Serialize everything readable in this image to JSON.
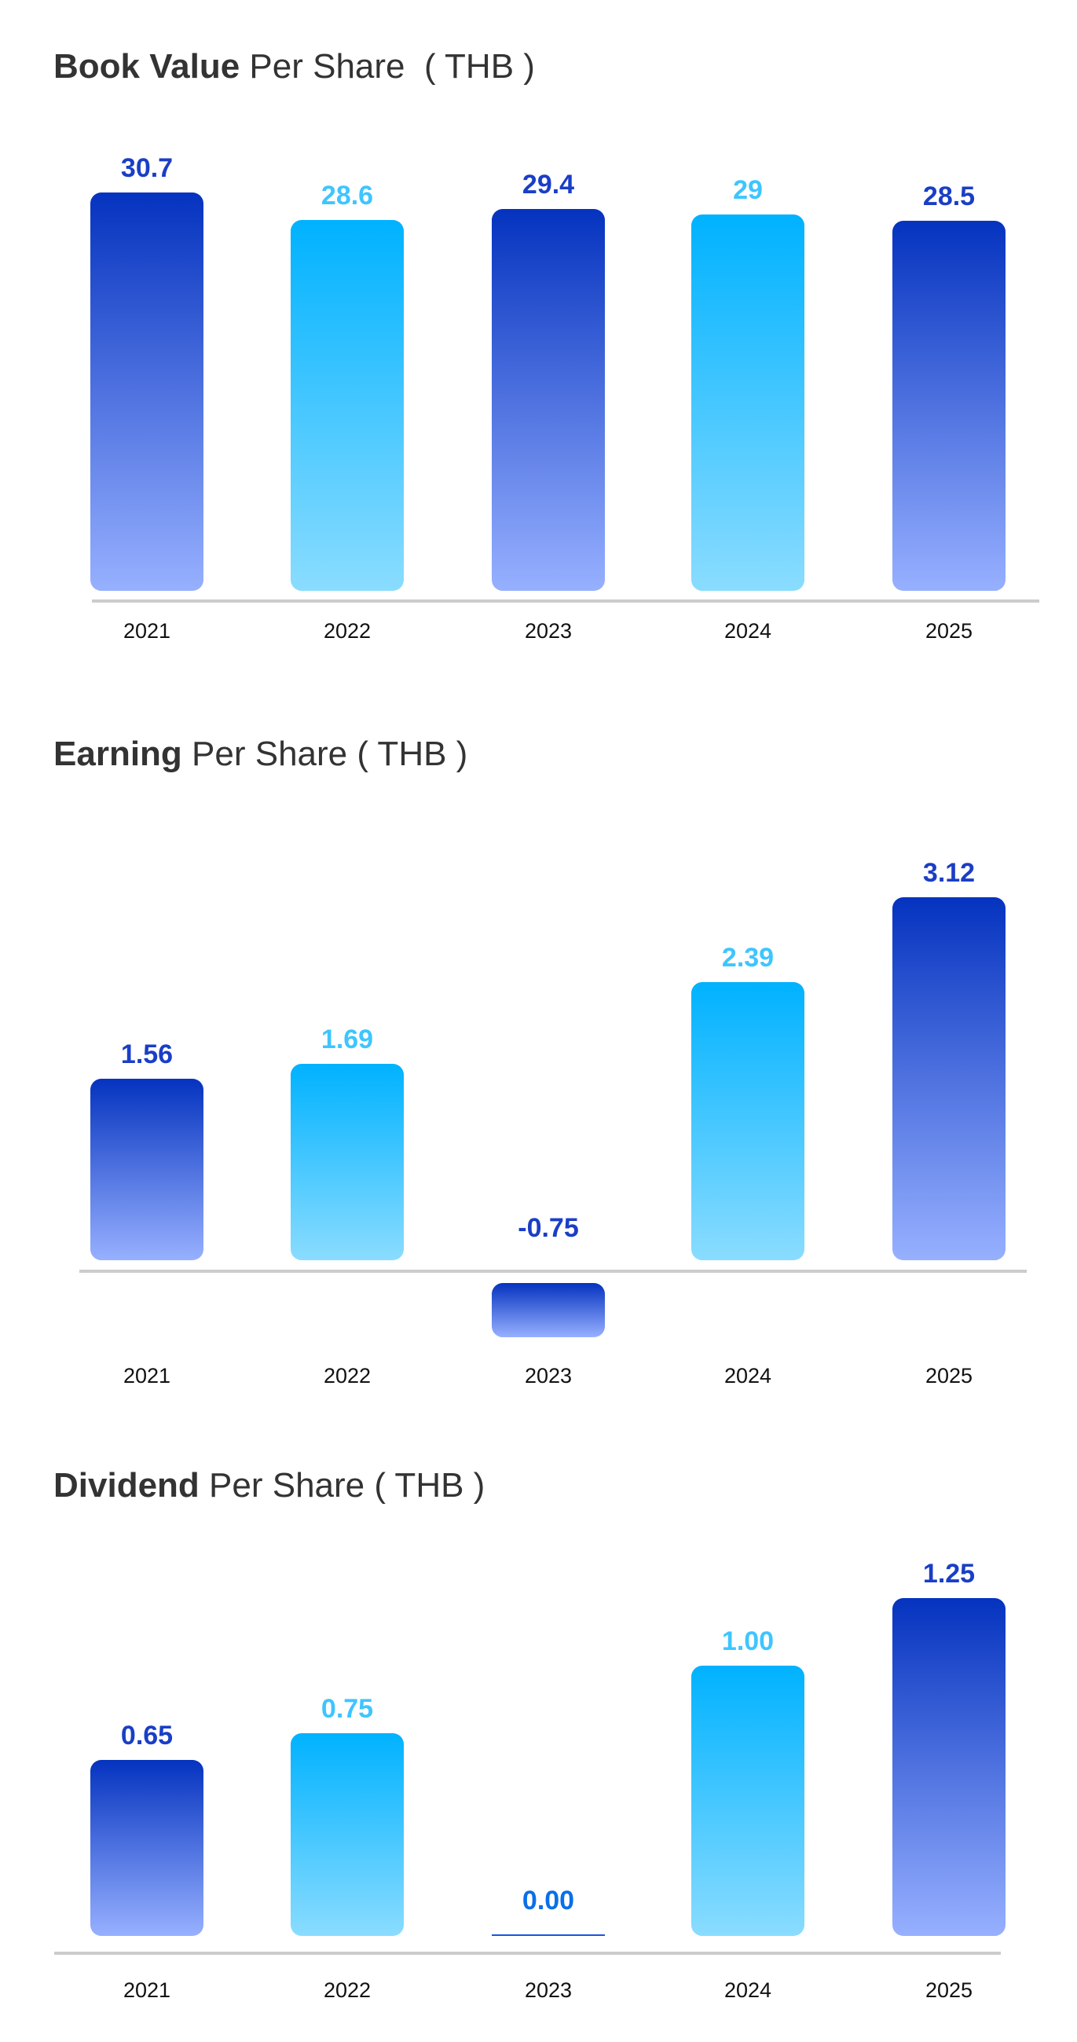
{
  "chart_data": [
    {
      "type": "bar",
      "title_bold": "Book Value",
      "title_rest": " Per Share  ( THB )",
      "categories": [
        "2021",
        "2022",
        "2023",
        "2024",
        "2025"
      ],
      "values": [
        30.7,
        28.6,
        29.4,
        29,
        28.5
      ],
      "labels": [
        "30.7",
        "28.6",
        "29.4",
        "29",
        "28.5"
      ],
      "xlabel": "",
      "ylabel": "",
      "grid": false
    },
    {
      "type": "bar",
      "title_bold": "Earning",
      "title_rest": " Per Share ( THB )",
      "categories": [
        "2021",
        "2022",
        "2023",
        "2024",
        "2025"
      ],
      "values": [
        1.56,
        1.69,
        -0.75,
        2.39,
        3.12
      ],
      "labels": [
        "1.56",
        "1.69",
        "-0.75",
        "2.39",
        "3.12"
      ],
      "xlabel": "",
      "ylabel": "",
      "grid": false
    },
    {
      "type": "bar",
      "title_bold": "Dividend",
      "title_rest": " Per Share ( THB )",
      "categories": [
        "2021",
        "2022",
        "2023",
        "2024",
        "2025"
      ],
      "values": [
        0.65,
        0.75,
        0.0,
        1.0,
        1.25
      ],
      "labels": [
        "0.65",
        "0.75",
        "0.00",
        "1.00",
        "1.25"
      ],
      "xlabel": "",
      "ylabel": "",
      "grid": false
    }
  ],
  "colors": {
    "dark_top": "#0533bf",
    "dark_bottom": "#97b0ff",
    "light_top": "#00b2ff",
    "light_bottom": "#8adcff",
    "axis": "#cccccc"
  }
}
